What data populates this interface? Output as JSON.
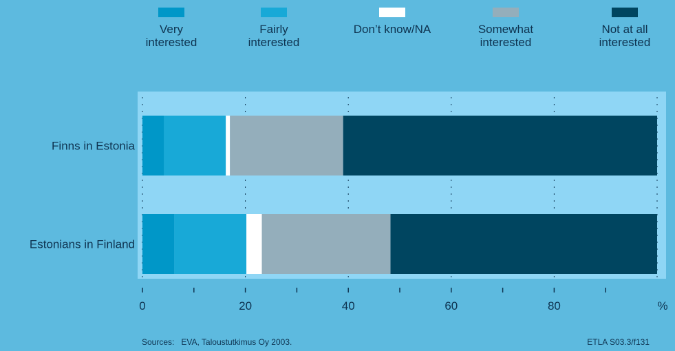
{
  "footer": {
    "source": "Sources:   EVA, Taloustutkimus Oy 2003.",
    "code": "ETLA S03.3/f131"
  },
  "colors": {
    "background": "#5dbadf",
    "plot_area": "#8fd6f5",
    "text": "#0e3350"
  },
  "chart_data": {
    "type": "bar",
    "orientation": "horizontal",
    "stacked": true,
    "categories": [
      "Finns in Estonia",
      "Estonians in Finland"
    ],
    "series": [
      {
        "name": "Very\ninterested",
        "color": "#0097c8",
        "values": [
          4.2,
          6.2
        ]
      },
      {
        "name": "Fairly\ninterested",
        "color": "#18a9d7",
        "values": [
          12.0,
          14.0
        ]
      },
      {
        "name": "Don’t know/NA",
        "color": "#ffffff",
        "values": [
          0.8,
          3.0
        ]
      },
      {
        "name": "Somewhat\ninterested",
        "color": "#94aebb",
        "values": [
          22.0,
          25.0
        ]
      },
      {
        "name": "Not at all\ninterested",
        "color": "#004560",
        "values": [
          61.0,
          51.8
        ]
      }
    ],
    "x_ticks": [
      0,
      20,
      40,
      60,
      80
    ],
    "x_unit": "%",
    "xlim": [
      0,
      100
    ],
    "grid": true,
    "legend_position": "top"
  }
}
